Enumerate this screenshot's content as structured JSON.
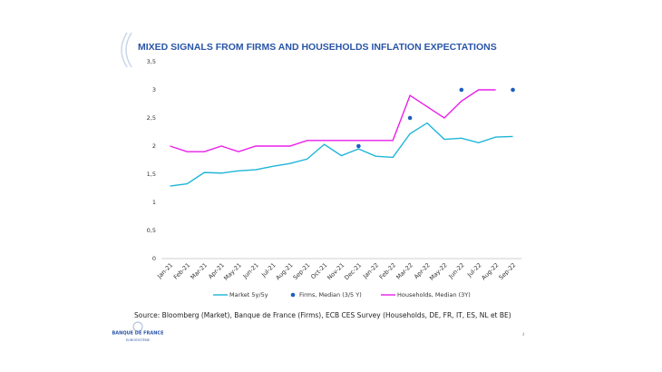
{
  "chart_data": {
    "type": "line",
    "title": "MIXED SIGNALS FROM FIRMS AND HOUSEHOLDS INFLATION EXPECTATIONS",
    "categories": [
      "Jan-21",
      "Feb-21",
      "Mar-21",
      "Apr-21",
      "May-21",
      "Jun-21",
      "Jul-21",
      "Aug-21",
      "Sep-21",
      "Oct-21",
      "Nov-21",
      "Dec-21",
      "Jan-22",
      "Feb-22",
      "Mar-22",
      "Apr-22",
      "May-22",
      "Jun-22",
      "Jul-22",
      "Aug-22",
      "Sep-22"
    ],
    "series": [
      {
        "name": "Market 5y/5y",
        "color": "#1fb5d8",
        "kind": "line",
        "values": [
          1.29,
          1.33,
          1.53,
          1.52,
          1.56,
          1.58,
          1.64,
          1.69,
          1.77,
          2.03,
          1.83,
          1.95,
          1.82,
          1.8,
          2.22,
          2.41,
          2.12,
          2.14,
          2.06,
          2.16,
          2.17
        ]
      },
      {
        "name": "Firms, Median (3/5 Y)",
        "color": "#1f5fbf",
        "kind": "marker",
        "values": [
          null,
          null,
          null,
          null,
          null,
          null,
          null,
          null,
          null,
          null,
          null,
          2.0,
          null,
          null,
          2.5,
          null,
          null,
          3.0,
          null,
          null,
          3.0
        ]
      },
      {
        "name": "Households, Median (3Y)",
        "color": "#ea1fea",
        "kind": "line",
        "values": [
          2.0,
          1.9,
          1.9,
          2.0,
          1.9,
          2.0,
          2.0,
          2.0,
          2.1,
          2.1,
          2.1,
          2.1,
          2.1,
          2.1,
          2.9,
          2.7,
          2.5,
          2.8,
          3.0,
          3.0,
          null
        ]
      }
    ],
    "ylim": [
      0,
      3.5
    ],
    "yticks": [
      0,
      {
        "value": 0.5,
        "label": "0,5"
      },
      1,
      {
        "value": 1.5,
        "label": "1,5"
      },
      2,
      {
        "value": 2.5,
        "label": "2,5"
      },
      3,
      {
        "value": 3.5,
        "label": "3,5"
      }
    ],
    "grid": false,
    "legend": "bottom"
  },
  "footer": {
    "source": "Source: Bloomberg (Market), Banque de France (Firms), ECB CES Survey (Households, DE, FR, IT, ES, NL et BE)",
    "logo_name": "BANQUE DE FRANCE",
    "logo_sub": "EUROSYSTÈME",
    "page_number": 4
  }
}
